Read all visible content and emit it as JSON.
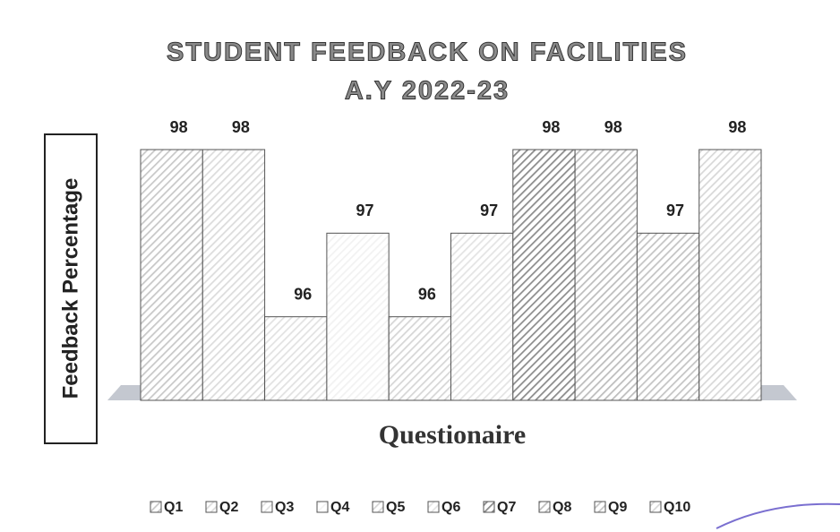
{
  "chart_data": {
    "type": "bar3d",
    "title": [
      "STUDENT FEEDBACK ON FACILITIES",
      "A.Y 2022-23"
    ],
    "y_label": "Feedback Percentage",
    "x_label": "Questionaire",
    "categories": [
      "Q1",
      "Q2",
      "Q3",
      "Q4",
      "Q5",
      "Q6",
      "Q7",
      "Q8",
      "Q9",
      "Q10"
    ],
    "values": [
      98,
      98,
      96,
      97,
      96,
      97,
      98,
      98,
      97,
      98
    ],
    "colors": [
      "#c8c8c8",
      "#dcdcdc",
      "#e2e2e2",
      "#f2f2f2",
      "#d6d6d6",
      "#e4e4e4",
      "#8c8c8c",
      "#bdbdbd",
      "#c4c4c4",
      "#d8d8d8"
    ],
    "ylim": [
      95,
      98
    ],
    "legend": "bottom"
  }
}
